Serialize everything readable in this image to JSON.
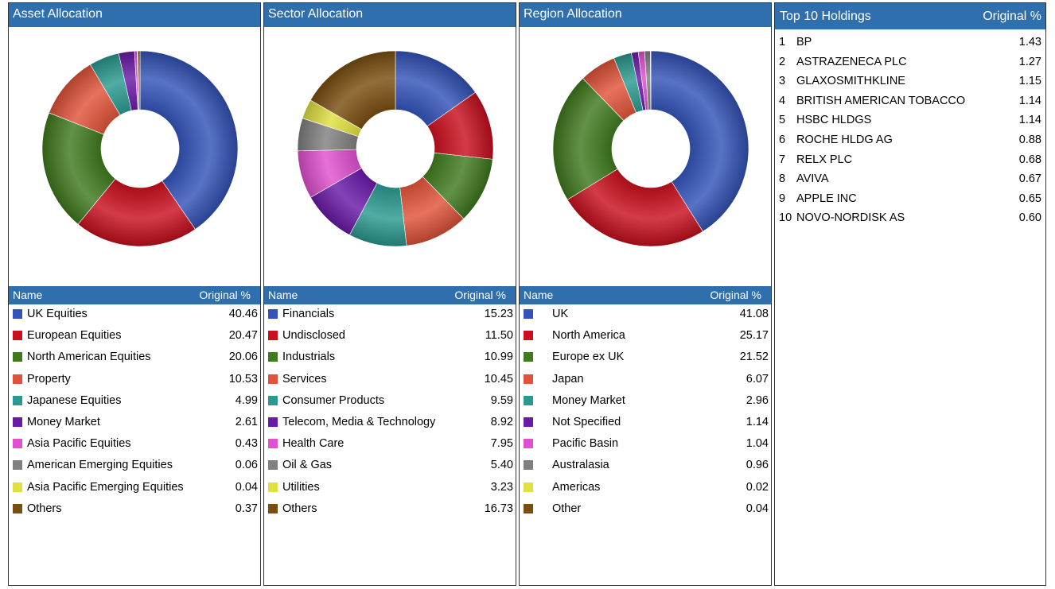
{
  "chart_data": [
    {
      "type": "pie",
      "title": "Asset Allocation",
      "header": {
        "name": "Name",
        "value": "Original %"
      },
      "categories": [
        "UK Equities",
        "European Equities",
        "North American Equities",
        "Property",
        "Japanese Equities",
        "Money Market",
        "Asia Pacific Equities",
        "American Emerging Equities",
        "Asia Pacific Emerging Equities",
        "Others"
      ],
      "values": [
        40.46,
        20.47,
        20.06,
        10.53,
        4.99,
        2.61,
        0.43,
        0.06,
        0.04,
        0.37
      ],
      "labels": [
        "40.46",
        "20.47",
        "20.06",
        "10.53",
        "4.99",
        "2.61",
        "0.43",
        "0.06",
        "0.04",
        "0.37"
      ],
      "colors": [
        "#3353b8",
        "#c8101e",
        "#3f7a1e",
        "#e0533a",
        "#2a9a90",
        "#6a1aa8",
        "#e050d0",
        "#808080",
        "#e0e040",
        "#7a4e10"
      ]
    },
    {
      "type": "pie",
      "title": "Sector Allocation",
      "header": {
        "name": "Name",
        "value": "Original %"
      },
      "categories": [
        "Financials",
        "Undisclosed",
        "Industrials",
        "Services",
        "Consumer Products",
        "Telecom, Media & Technology",
        "Health Care",
        "Oil & Gas",
        "Utilities",
        "Others"
      ],
      "values": [
        15.23,
        11.5,
        10.99,
        10.45,
        9.59,
        8.92,
        7.95,
        5.4,
        3.23,
        16.73
      ],
      "labels": [
        "15.23",
        "11.50",
        "10.99",
        "10.45",
        "9.59",
        "8.92",
        "7.95",
        "5.40",
        "3.23",
        "16.73"
      ],
      "colors": [
        "#3353b8",
        "#c8101e",
        "#3f7a1e",
        "#e0533a",
        "#2a9a90",
        "#6a1aa8",
        "#e050d0",
        "#808080",
        "#e0e040",
        "#7a4e10"
      ]
    },
    {
      "type": "pie",
      "title": "Region Allocation",
      "header": {
        "name": "Name",
        "value": "Original %"
      },
      "categories": [
        "UK",
        "North America",
        "Europe ex UK",
        "Japan",
        "Money Market",
        "Not Specified",
        "Pacific Basin",
        "Australasia",
        "Americas",
        "Other"
      ],
      "values": [
        41.08,
        25.17,
        21.52,
        6.07,
        2.96,
        1.14,
        1.04,
        0.96,
        0.02,
        0.04
      ],
      "labels": [
        "41.08",
        "25.17",
        "21.52",
        "6.07",
        "2.96",
        "1.14",
        "1.04",
        "0.96",
        "0.02",
        "0.04"
      ],
      "colors": [
        "#3353b8",
        "#c8101e",
        "#3f7a1e",
        "#e0533a",
        "#2a9a90",
        "#6a1aa8",
        "#e050d0",
        "#808080",
        "#e0e040",
        "#7a4e10"
      ]
    },
    {
      "type": "table",
      "title": "Top 10 Holdings",
      "header": {
        "name": "Top 10 Holdings",
        "value": "Original %"
      },
      "rows": [
        {
          "rank": "1",
          "name": "BP",
          "value": "1.43"
        },
        {
          "rank": "2",
          "name": "ASTRAZENECA PLC",
          "value": "1.27"
        },
        {
          "rank": "3",
          "name": "GLAXOSMITHKLINE",
          "value": "1.15"
        },
        {
          "rank": "4",
          "name": "BRITISH AMERICAN TOBACCO",
          "value": "1.14"
        },
        {
          "rank": "5",
          "name": "HSBC HLDGS",
          "value": "1.14"
        },
        {
          "rank": "6",
          "name": "ROCHE HLDG AG",
          "value": "0.88"
        },
        {
          "rank": "7",
          "name": "RELX PLC",
          "value": "0.68"
        },
        {
          "rank": "8",
          "name": "AVIVA",
          "value": "0.67"
        },
        {
          "rank": "9",
          "name": "APPLE INC",
          "value": "0.65"
        },
        {
          "rank": "10",
          "name": "NOVO-NORDISK AS",
          "value": "0.60"
        }
      ]
    }
  ]
}
